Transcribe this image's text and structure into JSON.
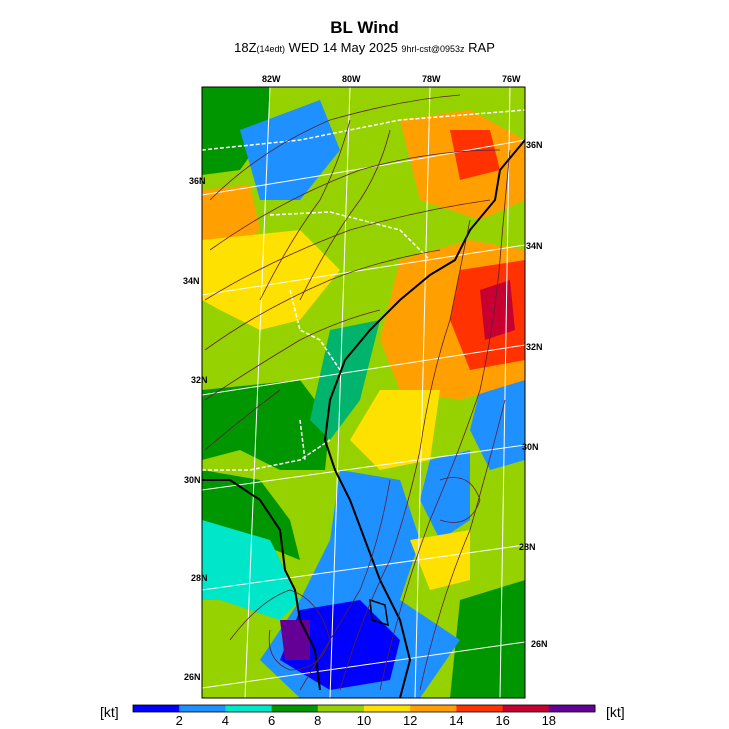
{
  "header": {
    "title": "BL Wind",
    "subtitle_main_a": "18Z",
    "subtitle_small_a": "(14edt)",
    "subtitle_main_b": " WED 14 May 2025 ",
    "subtitle_small_b": "9hrl-cst@0953z",
    "subtitle_main_c": " RAP"
  },
  "map": {
    "lon_labels": [
      "82W",
      "80W",
      "78W",
      "76W"
    ],
    "lat_labels_left": [
      "36N",
      "34N",
      "32N",
      "30N",
      "28N",
      "26N"
    ],
    "lat_labels_right": [
      "36N",
      "34N",
      "32N",
      "30N",
      "28N",
      "26N"
    ]
  },
  "colorbar": {
    "unit_left": "[kt]",
    "unit_right": "[kt]",
    "ticks": [
      "2",
      "4",
      "6",
      "8",
      "10",
      "12",
      "14",
      "16",
      "18"
    ],
    "colors": [
      "#0000ff",
      "#1e90ff",
      "#00e6c8",
      "#009600",
      "#96d200",
      "#ffe100",
      "#ffa000",
      "#ff3200",
      "#c80032",
      "#640096"
    ]
  }
}
